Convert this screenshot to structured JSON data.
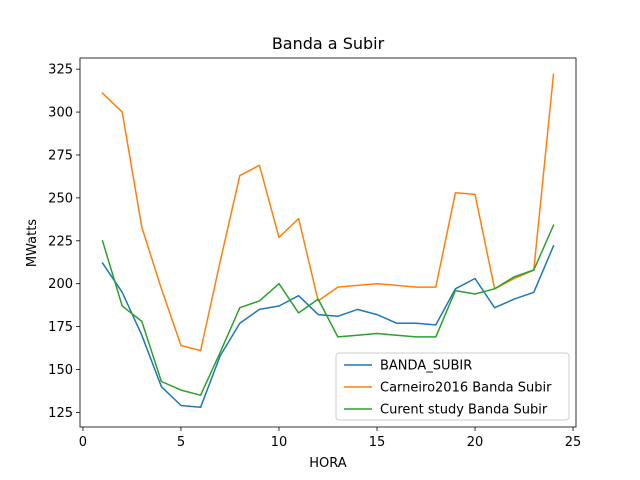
{
  "chart_data": {
    "type": "line",
    "title": "Banda a Subir",
    "xlabel": "HORA",
    "ylabel": "MWatts",
    "xlim": [
      -0.15,
      25.15
    ],
    "ylim": [
      116.5,
      331.5
    ],
    "xticks": [
      0,
      5,
      10,
      15,
      20,
      25
    ],
    "yticks": [
      125,
      150,
      175,
      200,
      225,
      250,
      275,
      300,
      325
    ],
    "grid": false,
    "legend_position": "lower right",
    "x": [
      1,
      2,
      3,
      4,
      5,
      6,
      7,
      8,
      9,
      10,
      11,
      12,
      13,
      14,
      15,
      16,
      17,
      18,
      19,
      20,
      21,
      22,
      23,
      24
    ],
    "series": [
      {
        "name": "BANDA_SUBIR",
        "color": "#1f77b4",
        "values": [
          212,
          195,
          170,
          140,
          129,
          128,
          158,
          177,
          185,
          187,
          193,
          182,
          181,
          185,
          182,
          177,
          177,
          176,
          197,
          203,
          186,
          191,
          195,
          222
        ]
      },
      {
        "name": "Carneiro2016 Banda Subir",
        "color": "#ff7f0e",
        "values": [
          311,
          300,
          233,
          197,
          164,
          161,
          213,
          263,
          269,
          227,
          238,
          190,
          198,
          199,
          200,
          199,
          198,
          198,
          253,
          252,
          197,
          203,
          208,
          322
        ]
      },
      {
        "name": "Curent study Banda Subir",
        "color": "#2ca02c",
        "values": [
          225,
          187,
          178,
          143,
          138,
          135,
          160,
          186,
          190,
          200,
          183,
          191,
          169,
          170,
          171,
          170,
          169,
          169,
          196,
          194,
          197,
          204,
          208,
          234
        ]
      }
    ]
  }
}
